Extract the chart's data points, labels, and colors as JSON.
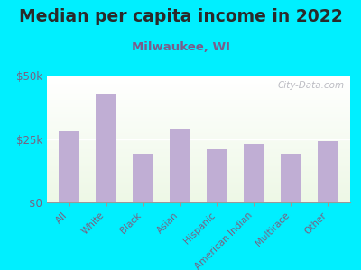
{
  "title": "Median per capita income in 2022",
  "subtitle": "Milwaukee, WI",
  "categories": [
    "All",
    "White",
    "Black",
    "Asian",
    "Hispanic",
    "American Indian",
    "Multirace",
    "Other"
  ],
  "values": [
    28000,
    43000,
    19000,
    29000,
    21000,
    23000,
    19000,
    24000
  ],
  "bar_color": "#c0aed4",
  "background_outer": "#00efff",
  "title_color": "#2a2a2a",
  "subtitle_color": "#7a5c8a",
  "tick_label_color": "#7a6080",
  "watermark": "City-Data.com",
  "ylim": [
    0,
    50000
  ],
  "yticks": [
    0,
    25000,
    50000
  ],
  "ytick_labels": [
    "$0",
    "$25k",
    "$50k"
  ],
  "title_fontsize": 13.5,
  "subtitle_fontsize": 9.5
}
